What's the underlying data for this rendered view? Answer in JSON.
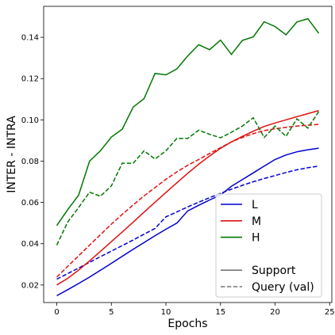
{
  "chart_data": {
    "type": "line",
    "xlabel": "Epochs",
    "ylabel": "INTER - INTRA",
    "xlim": [
      -1.2,
      25.2
    ],
    "ylim": [
      0.0115,
      0.155
    ],
    "xticks": [
      0,
      5,
      10,
      15,
      20,
      25
    ],
    "yticks": [
      0.02,
      0.04,
      0.06,
      0.08,
      0.1,
      0.12,
      0.14
    ],
    "ytick_labels": [
      "0.02",
      "0.04",
      "0.06",
      "0.08",
      "0.10",
      "0.12",
      "0.14"
    ],
    "xtick_labels": [
      "0",
      "5",
      "10",
      "15",
      "20",
      "25"
    ],
    "grid": false,
    "legend_position": "lower-right",
    "legend": {
      "groups": [
        {
          "label": "L",
          "color": "#0000cc"
        },
        {
          "label": "M",
          "color": "#e01010"
        },
        {
          "label": "H",
          "color": "#007700"
        }
      ],
      "styles": [
        {
          "label": "Support",
          "dash": "solid"
        },
        {
          "label": "Query (val)",
          "dash": "dashed"
        }
      ]
    },
    "x": [
      0,
      1,
      2,
      3,
      4,
      5,
      6,
      7,
      8,
      9,
      10,
      11,
      12,
      13,
      14,
      15,
      16,
      17,
      18,
      19,
      20,
      21,
      22,
      23,
      24
    ],
    "series": [
      {
        "group": "L",
        "style": "Support",
        "color": "#0000cc",
        "dash": "solid",
        "values": [
          0.0148,
          0.0177,
          0.0207,
          0.0238,
          0.0271,
          0.0305,
          0.0339,
          0.0373,
          0.0406,
          0.0439,
          0.047,
          0.05,
          0.0559,
          0.0586,
          0.0612,
          0.0636,
          0.0678,
          0.0711,
          0.0743,
          0.0776,
          0.0808,
          0.083,
          0.0845,
          0.0855,
          0.0863
        ]
      },
      {
        "group": "L",
        "style": "Query (val)",
        "color": "#0000cc",
        "dash": "dashed",
        "values": [
          0.0228,
          0.0255,
          0.0282,
          0.031,
          0.0337,
          0.0364,
          0.0391,
          0.0418,
          0.0446,
          0.0474,
          0.053,
          0.0554,
          0.0578,
          0.0601,
          0.0623,
          0.0644,
          0.0664,
          0.0683,
          0.07,
          0.0716,
          0.073,
          0.0745,
          0.0758,
          0.0768,
          0.0776
        ]
      },
      {
        "group": "M",
        "style": "Support",
        "color": "#e01010",
        "dash": "solid",
        "values": [
          0.02,
          0.0232,
          0.0272,
          0.0317,
          0.0363,
          0.041,
          0.0457,
          0.0505,
          0.0553,
          0.0601,
          0.0648,
          0.0695,
          0.0741,
          0.0785,
          0.0825,
          0.0862,
          0.0893,
          0.092,
          0.0945,
          0.0968,
          0.0985,
          0.1,
          0.1015,
          0.103,
          0.1045
        ]
      },
      {
        "group": "M",
        "style": "Query (val)",
        "color": "#e01010",
        "dash": "dashed",
        "values": [
          0.0238,
          0.029,
          0.0341,
          0.0393,
          0.0444,
          0.0495,
          0.0542,
          0.0588,
          0.0632,
          0.0672,
          0.0712,
          0.0748,
          0.078,
          0.0808,
          0.0837,
          0.0865,
          0.0893,
          0.0915,
          0.0933,
          0.0948,
          0.0957,
          0.0964,
          0.097,
          0.0974,
          0.0978
        ]
      },
      {
        "group": "H",
        "style": "Support",
        "color": "#007700",
        "dash": "solid",
        "values": [
          0.0488,
          0.0565,
          0.0635,
          0.08,
          0.085,
          0.0917,
          0.0955,
          0.1062,
          0.1103,
          0.1225,
          0.1218,
          0.1247,
          0.131,
          0.1364,
          0.134,
          0.1386,
          0.1317,
          0.1385,
          0.1402,
          0.1475,
          0.1452,
          0.1412,
          0.1474,
          0.149,
          0.142
        ]
      },
      {
        "group": "H",
        "style": "Query (val)",
        "color": "#007700",
        "dash": "dashed",
        "values": [
          0.0393,
          0.0505,
          0.0575,
          0.065,
          0.063,
          0.068,
          0.079,
          0.079,
          0.085,
          0.081,
          0.085,
          0.091,
          0.091,
          0.095,
          0.093,
          0.0913,
          0.094,
          0.097,
          0.101,
          0.0915,
          0.097,
          0.092,
          0.1005,
          0.096,
          0.104
        ]
      }
    ]
  }
}
